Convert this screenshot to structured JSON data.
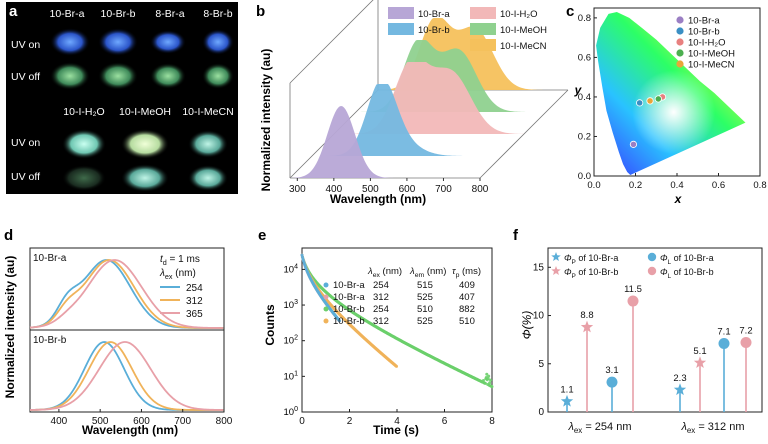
{
  "panel_letters": [
    "a",
    "b",
    "c",
    "d",
    "e",
    "f"
  ],
  "chart_data": [
    {
      "panel": "a",
      "type": "other",
      "description_labels": {
        "row_labels": [
          "UV on",
          "UV off",
          "UV on",
          "UV off"
        ],
        "top_columns": [
          "10-Br-a",
          "10-Br-b",
          "8-Br-a",
          "8-Br-b"
        ],
        "bottom_columns": [
          "10-I-H₂O",
          "10-I-MeOH",
          "10-I-MeCN"
        ]
      }
    },
    {
      "panel": "b",
      "type": "area",
      "xlabel": "Wavelength (nm)",
      "ylabel": "Normalized intensity (au)",
      "xticks": [
        "300",
        "400",
        "500",
        "600",
        "700",
        "800"
      ],
      "xlim": [
        280,
        800
      ],
      "legend": [
        "10-Br-a",
        "10-Br-b",
        "10-I-H₂O",
        "10-I-MeOH",
        "10-I-MeCN"
      ],
      "series": [
        {
          "name": "10-Br-a",
          "color": "#b7a6d6",
          "peak": 420,
          "width": 38
        },
        {
          "name": "10-Br-b",
          "color": "#74b8e0",
          "peak": 470,
          "width": 40
        },
        {
          "name": "10-I-H₂O",
          "color": "#f2b8b8",
          "peak": 560,
          "width": 60
        },
        {
          "name": "10-I-MeOH",
          "color": "#8fd18f",
          "peak": 520,
          "width": 55
        },
        {
          "name": "10-I-MeCN",
          "color": "#f5c15c",
          "peak": 505,
          "width": 55
        }
      ]
    },
    {
      "panel": "c",
      "type": "scatter",
      "xlabel": "x",
      "ylabel": "y",
      "xticks": [
        "0.0",
        "0.2",
        "0.4",
        "0.6",
        "0.8"
      ],
      "yticks": [
        "0.0",
        "0.2",
        "0.4",
        "0.6",
        "0.8"
      ],
      "xlim": [
        0,
        0.8
      ],
      "ylim": [
        0,
        0.85
      ],
      "legend": [
        {
          "name": "10-Br-a",
          "color": "#9b7fc4"
        },
        {
          "name": "10-Br-b",
          "color": "#3a8fc4"
        },
        {
          "name": "10-I-H₂O",
          "color": "#e8807f"
        },
        {
          "name": "10-I-MeOH",
          "color": "#4caf50"
        },
        {
          "name": "10-I-MeCN",
          "color": "#e8a53a"
        }
      ],
      "points": [
        {
          "name": "10-Br-a",
          "x": 0.19,
          "y": 0.16
        },
        {
          "name": "10-Br-b",
          "x": 0.22,
          "y": 0.37
        },
        {
          "name": "10-I-H₂O",
          "x": 0.33,
          "y": 0.4
        },
        {
          "name": "10-I-MeOH",
          "x": 0.31,
          "y": 0.39
        },
        {
          "name": "10-I-MeCN",
          "x": 0.27,
          "y": 0.38
        }
      ]
    },
    {
      "panel": "d",
      "type": "line",
      "xlabel": "Wavelength (nm)",
      "ylabel": "Normalized intensity (au)",
      "xticks": [
        "400",
        "500",
        "600",
        "700",
        "800"
      ],
      "xlim": [
        330,
        800
      ],
      "annotation_td": "t",
      "annotation_td_sub": "d",
      "annotation_td_value": " = 1 ms",
      "annotation_lambda": "λ",
      "annotation_lambda_sub": "ex",
      "annotation_unit": "(nm)",
      "legend": [
        {
          "name": "254",
          "color": "#5aaed8"
        },
        {
          "name": "312",
          "color": "#f0b35a"
        },
        {
          "name": "365",
          "color": "#e8a0a8"
        }
      ],
      "subpanels": [
        {
          "label": "10-Br-a",
          "series": [
            {
              "name": "254",
              "peak": 515,
              "width": 58,
              "shoulder": 0.25
            },
            {
              "name": "312",
              "peak": 522,
              "width": 60,
              "shoulder": 0.18
            },
            {
              "name": "365",
              "peak": 535,
              "width": 65,
              "shoulder": 0.05
            }
          ]
        },
        {
          "label": "10-Br-b",
          "series": [
            {
              "name": "254",
              "peak": 510,
              "width": 48,
              "shoulder": 0.0
            },
            {
              "name": "312",
              "peak": 525,
              "width": 52,
              "shoulder": 0.0
            },
            {
              "name": "365",
              "peak": 560,
              "width": 62,
              "shoulder": 0.0
            }
          ]
        }
      ]
    },
    {
      "panel": "e",
      "type": "scatter",
      "xlabel": "Time (s)",
      "ylabel": "Counts",
      "xticks": [
        "0",
        "2",
        "4",
        "6",
        "8"
      ],
      "ytick_powers": [
        "0",
        "1",
        "2",
        "3",
        "4"
      ],
      "xlim": [
        0,
        8
      ],
      "ylim_log": [
        0,
        4.6
      ],
      "table_headers": {
        "lambda_ex": "λ",
        "ex": "ex",
        "lambda_em": "λ",
        "em": "em",
        "unit": "(nm)",
        "tau": "τ",
        "p": "p",
        "tau_unit": "(ms)"
      },
      "series": [
        {
          "name": "10-Br-a",
          "ex": "254",
          "em": "515",
          "tau": "409",
          "color": "#5aaed8",
          "tau_s": 0.409,
          "end": 1.6
        },
        {
          "name": "10-Br-a",
          "ex": "312",
          "em": "525",
          "tau": "407",
          "color": "#e8a0a8",
          "tau_s": 0.407,
          "end": 1.6
        },
        {
          "name": "10-Br-b",
          "ex": "254",
          "em": "510",
          "tau": "882",
          "color": "#6ccf6c",
          "tau_s": 0.882,
          "end": 8.0
        },
        {
          "name": "10-Br-b",
          "ex": "312",
          "em": "525",
          "tau": "510",
          "color": "#f0b35a",
          "tau_s": 0.51,
          "end": 4.0
        }
      ]
    },
    {
      "panel": "f",
      "type": "bar",
      "ylabel": "Φ(%)",
      "yticks": [
        "0",
        "5",
        "10",
        "15"
      ],
      "ylim": [
        0,
        17
      ],
      "legend": [
        {
          "label": "Φ",
          "sub": "P",
          "rest": " of 10-Br-a",
          "marker": "star",
          "color": "#5aaed8"
        },
        {
          "label": "Φ",
          "sub": "L",
          "rest": " of 10-Br-a",
          "marker": "circle",
          "color": "#5aaed8"
        },
        {
          "label": "Φ",
          "sub": "P",
          "rest": " of 10-Br-b",
          "marker": "star",
          "color": "#e8a0a8"
        },
        {
          "label": "Φ",
          "sub": "L",
          "rest": " of 10-Br-b",
          "marker": "circle",
          "color": "#e8a0a8"
        }
      ],
      "groups": [
        {
          "label_lambda": "λ",
          "label_sub": "ex",
          "label_rest": " = 254 nm",
          "items": [
            {
              "value": 1.1,
              "text": "1.1",
              "marker": "star",
              "color": "#5aaed8"
            },
            {
              "value": 8.8,
              "text": "8.8",
              "marker": "star",
              "color": "#e8a0a8"
            },
            {
              "value": 3.1,
              "text": "3.1",
              "marker": "circle",
              "color": "#5aaed8"
            },
            {
              "value": 11.5,
              "text": "11.5",
              "marker": "circle",
              "color": "#e8a0a8"
            }
          ]
        },
        {
          "label_lambda": "λ",
          "label_sub": "ex",
          "label_rest": " = 312 nm",
          "items": [
            {
              "value": 2.3,
              "text": "2.3",
              "marker": "star",
              "color": "#5aaed8"
            },
            {
              "value": 5.1,
              "text": "5.1",
              "marker": "star",
              "color": "#e8a0a8"
            },
            {
              "value": 7.1,
              "text": "7.1",
              "marker": "circle",
              "color": "#5aaed8"
            },
            {
              "value": 7.2,
              "text": "7.2",
              "marker": "circle",
              "color": "#e8a0a8"
            }
          ]
        }
      ]
    }
  ]
}
